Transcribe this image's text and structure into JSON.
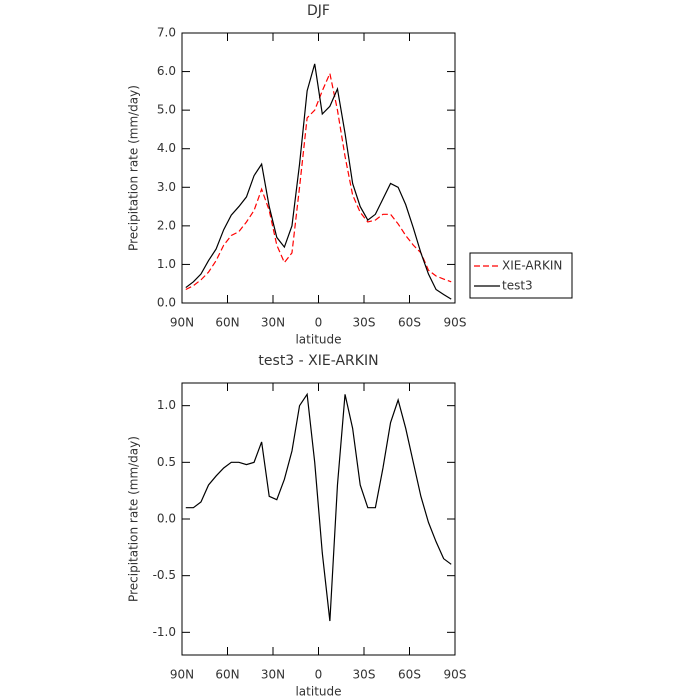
{
  "chart_data": [
    {
      "type": "line",
      "title": "DJF",
      "xlabel": "latitude",
      "ylabel": "Precipitation rate (mm/day)",
      "x": [
        87.5,
        82.5,
        77.5,
        72.5,
        67.5,
        62.5,
        57.5,
        52.5,
        47.5,
        42.5,
        37.5,
        32.5,
        27.5,
        22.5,
        17.5,
        12.5,
        7.5,
        2.5,
        -2.5,
        -7.5,
        -12.5,
        -17.5,
        -22.5,
        -27.5,
        -32.5,
        -37.5,
        -42.5,
        -47.5,
        -52.5,
        -57.5,
        -62.5,
        -67.5,
        -72.5,
        -77.5,
        -82.5,
        -87.5
      ],
      "series": [
        {
          "name": "XIE-ARKIN",
          "color": "#ff0000",
          "dash": true,
          "values": [
            0.35,
            0.45,
            0.6,
            0.8,
            1.1,
            1.5,
            1.75,
            1.85,
            2.1,
            2.4,
            2.95,
            2.4,
            1.5,
            1.05,
            1.3,
            3.0,
            4.8,
            5.0,
            5.5,
            5.95,
            5.0,
            3.8,
            2.8,
            2.35,
            2.1,
            2.15,
            2.3,
            2.3,
            2.05,
            1.75,
            1.5,
            1.3,
            0.85,
            0.7,
            0.62,
            0.55
          ]
        },
        {
          "name": "test3",
          "color": "#000000",
          "dash": false,
          "values": [
            0.4,
            0.55,
            0.75,
            1.1,
            1.4,
            1.9,
            2.28,
            2.5,
            2.75,
            3.3,
            3.6,
            2.5,
            1.7,
            1.45,
            2.0,
            3.6,
            5.5,
            6.2,
            4.9,
            5.1,
            5.55,
            4.4,
            3.1,
            2.5,
            2.15,
            2.3,
            2.7,
            3.1,
            3.0,
            2.55,
            1.95,
            1.3,
            0.75,
            0.35,
            0.22,
            0.1
          ]
        }
      ],
      "xlim": [
        90,
        -90
      ],
      "xticks": [
        {
          "value": 90,
          "label": "90N"
        },
        {
          "value": 60,
          "label": "60N"
        },
        {
          "value": 30,
          "label": "30N"
        },
        0,
        {
          "value": -30,
          "label": "30S"
        },
        {
          "value": -60,
          "label": "60S"
        },
        {
          "value": -90,
          "label": "90S"
        }
      ],
      "ylim": [
        0,
        7
      ],
      "yticks": [
        {
          "value": 0,
          "label": "0.0"
        },
        {
          "value": 1,
          "label": "1.0"
        },
        {
          "value": 2,
          "label": "2.0"
        },
        {
          "value": 3,
          "label": "3.0"
        },
        {
          "value": 4,
          "label": "4.0"
        },
        {
          "value": 5,
          "label": "5.0"
        },
        {
          "value": 6,
          "label": "6.0"
        },
        {
          "value": 7,
          "label": "7.0"
        }
      ],
      "legend": "right"
    },
    {
      "type": "line",
      "title": "test3 - XIE-ARKIN",
      "xlabel": "latitude",
      "ylabel": "Precipitation rate (mm/day)",
      "x": [
        87.5,
        82.5,
        77.5,
        72.5,
        67.5,
        62.5,
        57.5,
        52.5,
        47.5,
        42.5,
        37.5,
        32.5,
        27.5,
        22.5,
        17.5,
        12.5,
        7.5,
        2.5,
        -2.5,
        -7.5,
        -12.5,
        -17.5,
        -22.5,
        -27.5,
        -32.5,
        -37.5,
        -42.5,
        -47.5,
        -52.5,
        -57.5,
        -62.5,
        -67.5,
        -72.5,
        -77.5,
        -82.5,
        -87.5
      ],
      "values": [
        0.1,
        0.1,
        0.15,
        0.3,
        0.38,
        0.45,
        0.5,
        0.5,
        0.48,
        0.5,
        0.68,
        0.2,
        0.17,
        0.35,
        0.6,
        1.0,
        1.1,
        0.5,
        -0.3,
        -0.9,
        0.3,
        1.1,
        0.8,
        0.3,
        0.1,
        0.1,
        0.45,
        0.85,
        1.05,
        0.8,
        0.5,
        0.2,
        -0.03,
        -0.2,
        -0.35,
        -0.4
      ],
      "color": "#000000",
      "xlim": [
        90,
        -90
      ],
      "xticks": [
        {
          "value": 90,
          "label": "90N"
        },
        {
          "value": 60,
          "label": "60N"
        },
        {
          "value": 30,
          "label": "30N"
        },
        0,
        {
          "value": -30,
          "label": "30S"
        },
        {
          "value": -60,
          "label": "60S"
        },
        {
          "value": -90,
          "label": "90S"
        }
      ],
      "ylim": [
        -1.2,
        1.2
      ],
      "yticks": [
        {
          "value": -1,
          "label": "-1.0"
        },
        {
          "value": -0.5,
          "label": "-0.5"
        },
        {
          "value": 0,
          "label": "0.0"
        },
        {
          "value": 0.5,
          "label": "0.5"
        },
        {
          "value": 1,
          "label": "1.0"
        }
      ]
    }
  ]
}
